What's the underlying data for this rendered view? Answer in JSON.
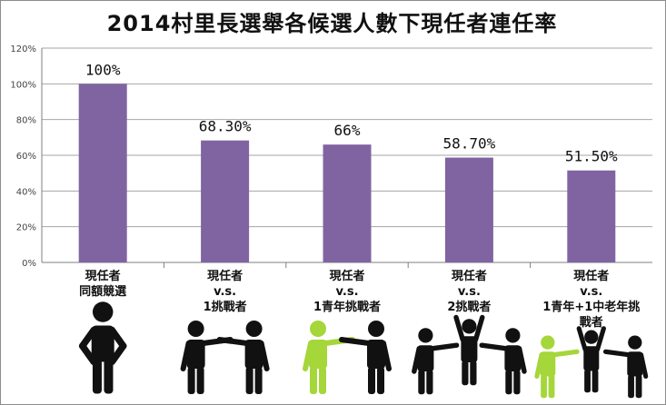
{
  "chart_data": {
    "type": "bar",
    "title": "2014村里長選舉各候選人數下現任者連任率",
    "categories": [
      [
        "現任者",
        "同額競選"
      ],
      [
        "現任者",
        "v.s.",
        "1挑戰者"
      ],
      [
        "現任者",
        "v.s.",
        "1青年挑戰者"
      ],
      [
        "現任者",
        "v.s.",
        "2挑戰者"
      ],
      [
        "現任者",
        "v.s.",
        "1青年+1中老年挑",
        "戰者"
      ]
    ],
    "values": [
      100,
      68.3,
      66,
      58.7,
      51.5
    ],
    "data_labels": [
      "100%",
      "68.30%",
      "66%",
      "58.70%",
      "51.50%"
    ],
    "yticks": [
      "0%",
      "20%",
      "40%",
      "60%",
      "80%",
      "100%",
      "120%"
    ],
    "ylim": [
      0,
      120
    ],
    "grid": true,
    "bar_color": "#8064a2",
    "figure_groups": [
      [
        "black"
      ],
      [
        "black",
        "black"
      ],
      [
        "green",
        "black"
      ],
      [
        "black",
        "black",
        "black"
      ],
      [
        "green",
        "black",
        "black"
      ]
    ],
    "colors": {
      "challenger_youth": "#a5d63a",
      "person": "#111111"
    }
  }
}
